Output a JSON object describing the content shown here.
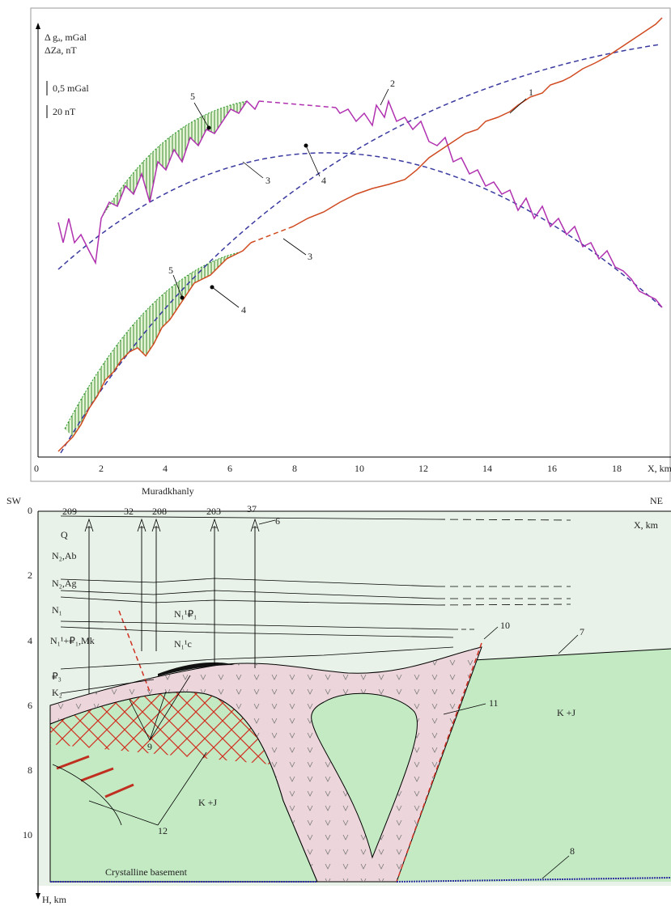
{
  "profile": {
    "y_axis_label_1": "Δ gₐ, mGal",
    "y_axis_label_2": "ΔZa, nT",
    "scale_bars": [
      "0,5 mGal",
      "20 nT"
    ],
    "x_ticks": [
      "0",
      "2",
      "4",
      "6",
      "8",
      "10",
      "12",
      "14",
      "16",
      "18"
    ],
    "x_axis_label": "X, km",
    "curve_labels": [
      "1",
      "2",
      "3",
      "4",
      "3",
      "4",
      "5",
      "5"
    ]
  },
  "section": {
    "left_side": "SW",
    "right_side": "NE",
    "area": "Muradkhanly",
    "wells": [
      "209",
      "32",
      "208",
      "203",
      "37"
    ],
    "well_label": "6",
    "depth_ticks": [
      "0",
      "2",
      "4",
      "6",
      "8",
      "10"
    ],
    "depth_axis_label": "H, km",
    "x_axis_label": "X, km",
    "strata": [
      "Q",
      "N₂,Ab",
      "N₂,Ag",
      "N₁",
      "N₁¹+₽₁,Mk",
      "₽₃",
      "K₂",
      "N₁¹₽₁",
      "N₁¹c"
    ],
    "legend_numbers": [
      "7",
      "8",
      "9",
      "10",
      "11",
      "12"
    ],
    "formations": [
      "K +J",
      "K +J"
    ],
    "basement": "Crystalline basement"
  }
}
